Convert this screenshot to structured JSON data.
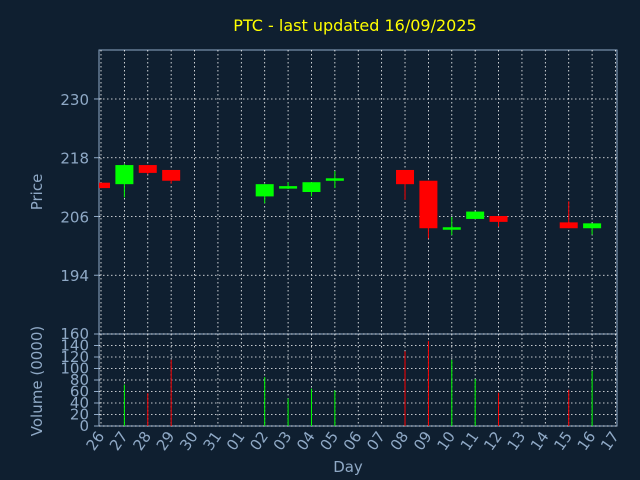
{
  "chart_data": [
    {
      "type": "candlestick",
      "title": "PTC - last updated 16/09/2025",
      "ylabel": "Price",
      "ylim": [
        182,
        240
      ],
      "yticks": [
        194,
        206,
        218,
        230
      ],
      "grid": true,
      "x_categories": [
        "26",
        "27",
        "28",
        "29",
        "30",
        "31",
        "01",
        "02",
        "03",
        "04",
        "05",
        "06",
        "07",
        "08",
        "09",
        "10",
        "11",
        "12",
        "13",
        "14",
        "15",
        "16",
        "17"
      ],
      "candles": [
        {
          "day": "26",
          "open": 212.9,
          "close": 211.8,
          "high": 212.9,
          "low": 211.8
        },
        {
          "day": "27",
          "open": 212.6,
          "close": 216.5,
          "high": 216.7,
          "low": 209.9
        },
        {
          "day": "28",
          "open": 216.5,
          "close": 214.9,
          "high": 216.5,
          "low": 214.6
        },
        {
          "day": "29",
          "open": 215.5,
          "close": 213.3,
          "high": 215.5,
          "low": 212.7
        },
        {
          "day": "02",
          "open": 210.1,
          "close": 212.6,
          "high": 212.6,
          "low": 208.7
        },
        {
          "day": "03",
          "open": 211.9,
          "close": 212.2,
          "high": 213.0,
          "low": 211.6
        },
        {
          "day": "04",
          "open": 211.0,
          "close": 213.0,
          "high": 213.0,
          "low": 210.1
        },
        {
          "day": "05",
          "open": 213.4,
          "close": 213.8,
          "high": 215.3,
          "low": 211.8
        },
        {
          "day": "08",
          "open": 215.5,
          "close": 212.6,
          "high": 215.5,
          "low": 209.4
        },
        {
          "day": "09",
          "open": 213.3,
          "close": 203.6,
          "high": 213.3,
          "low": 201.5
        },
        {
          "day": "10",
          "open": 203.4,
          "close": 203.8,
          "high": 205.9,
          "low": 202.2
        },
        {
          "day": "11",
          "open": 205.5,
          "close": 207.0,
          "high": 207.0,
          "low": 205.5
        },
        {
          "day": "12",
          "open": 206.1,
          "close": 204.9,
          "high": 206.1,
          "low": 203.9
        },
        {
          "day": "15",
          "open": 204.8,
          "close": 203.6,
          "high": 209.1,
          "low": 203.6
        },
        {
          "day": "16",
          "open": 203.6,
          "close": 204.6,
          "high": 204.6,
          "low": 202.3
        }
      ],
      "colors": {
        "up": "#00ff00",
        "down": "#ff0000"
      }
    },
    {
      "type": "bar",
      "ylabel": "Volume (0000)",
      "xlabel": "Day",
      "ylim": [
        0,
        160
      ],
      "yticks": [
        0,
        20,
        40,
        60,
        80,
        100,
        120,
        140,
        160
      ],
      "grid": true,
      "categories": [
        "26",
        "27",
        "28",
        "29",
        "30",
        "31",
        "01",
        "02",
        "03",
        "04",
        "05",
        "06",
        "07",
        "08",
        "09",
        "10",
        "11",
        "12",
        "13",
        "14",
        "15",
        "16",
        "17"
      ],
      "volumes": [
        {
          "day": "27",
          "value": 72,
          "direction": "up"
        },
        {
          "day": "28",
          "value": 57,
          "direction": "down"
        },
        {
          "day": "29",
          "value": 115,
          "direction": "down"
        },
        {
          "day": "02",
          "value": 85,
          "direction": "up"
        },
        {
          "day": "03",
          "value": 48,
          "direction": "up"
        },
        {
          "day": "04",
          "value": 65,
          "direction": "up"
        },
        {
          "day": "05",
          "value": 62,
          "direction": "up"
        },
        {
          "day": "08",
          "value": 130,
          "direction": "down"
        },
        {
          "day": "09",
          "value": 148,
          "direction": "down"
        },
        {
          "day": "10",
          "value": 115,
          "direction": "up"
        },
        {
          "day": "11",
          "value": 82,
          "direction": "up"
        },
        {
          "day": "12",
          "value": 58,
          "direction": "down"
        },
        {
          "day": "15",
          "value": 63,
          "direction": "down"
        },
        {
          "day": "16",
          "value": 96,
          "direction": "up"
        }
      ]
    }
  ],
  "colors": {
    "background": "#0f1f30",
    "title": "#ffff00",
    "axis_text": "#8fa9c6",
    "grid": "#ffffff"
  }
}
